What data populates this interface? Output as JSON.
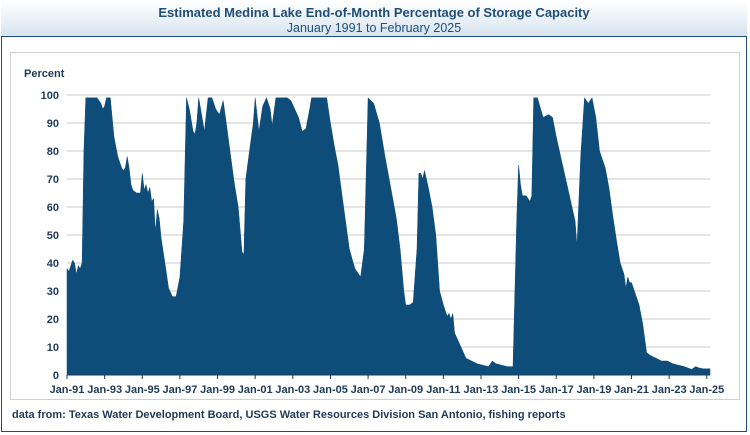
{
  "header": {
    "title": "Estimated Medina Lake End-of-Month Percentage of Storage Capacity",
    "subtitle": "January 1991 to February 2025"
  },
  "footer": {
    "source": "data from:  Texas Water Development Board, USGS Water Resources Division San Antonio, fishing reports"
  },
  "colors": {
    "fill": "#0e4c7a",
    "grid": "#c8c8c8",
    "frame": "#1f4e79",
    "text": "#1f3a57"
  },
  "chart_data": {
    "type": "area",
    "title": "Estimated Medina Lake End-of-Month Percentage of Storage Capacity",
    "subtitle": "January 1991 to February 2025",
    "ylabel": "Percent",
    "xlabel": "",
    "ylim": [
      0,
      100
    ],
    "yticks": [
      0,
      10,
      20,
      30,
      40,
      50,
      60,
      70,
      80,
      90,
      100
    ],
    "xlim": [
      1991.0,
      2025.17
    ],
    "xticks": [
      {
        "label": "Jan-91",
        "x": 1991.0
      },
      {
        "label": "Jan-93",
        "x": 1993.0
      },
      {
        "label": "Jan-95",
        "x": 1995.0
      },
      {
        "label": "Jan-97",
        "x": 1997.0
      },
      {
        "label": "Jan-99",
        "x": 1999.0
      },
      {
        "label": "Jan-01",
        "x": 2001.0
      },
      {
        "label": "Jan-03",
        "x": 2003.0
      },
      {
        "label": "Jan-05",
        "x": 2005.0
      },
      {
        "label": "Jan-07",
        "x": 2007.0
      },
      {
        "label": "Jan-09",
        "x": 2009.0
      },
      {
        "label": "Jan-11",
        "x": 2011.0
      },
      {
        "label": "Jan-13",
        "x": 2013.0
      },
      {
        "label": "Jan-15",
        "x": 2015.0
      },
      {
        "label": "Jan-17",
        "x": 2017.0
      },
      {
        "label": "Jan-19",
        "x": 2019.0
      },
      {
        "label": "Jan-21",
        "x": 2021.0
      },
      {
        "label": "Jan-23",
        "x": 2023.0
      },
      {
        "label": "Jan-25",
        "x": 2025.0
      }
    ],
    "grid": true,
    "series": [
      {
        "points": [
          [
            1991.0,
            38
          ],
          [
            1991.1,
            37
          ],
          [
            1991.2,
            39
          ],
          [
            1991.3,
            41
          ],
          [
            1991.4,
            40
          ],
          [
            1991.5,
            36
          ],
          [
            1991.6,
            39
          ],
          [
            1991.7,
            38
          ],
          [
            1991.8,
            40
          ],
          [
            1991.9,
            80
          ],
          [
            1992.0,
            99
          ],
          [
            1992.3,
            99
          ],
          [
            1992.6,
            99
          ],
          [
            1992.8,
            97
          ],
          [
            1992.9,
            95
          ],
          [
            1993.0,
            96
          ],
          [
            1993.1,
            99
          ],
          [
            1993.3,
            99
          ],
          [
            1993.5,
            85
          ],
          [
            1993.7,
            78
          ],
          [
            1993.9,
            74
          ],
          [
            1994.0,
            73
          ],
          [
            1994.1,
            74
          ],
          [
            1994.2,
            78
          ],
          [
            1994.3,
            74
          ],
          [
            1994.4,
            68
          ],
          [
            1994.5,
            66
          ],
          [
            1994.7,
            65
          ],
          [
            1994.9,
            65
          ],
          [
            1995.0,
            72
          ],
          [
            1995.1,
            66
          ],
          [
            1995.2,
            68
          ],
          [
            1995.3,
            65
          ],
          [
            1995.4,
            67
          ],
          [
            1995.5,
            62
          ],
          [
            1995.6,
            63
          ],
          [
            1995.7,
            51
          ],
          [
            1995.8,
            59
          ],
          [
            1995.9,
            56
          ],
          [
            1996.0,
            49
          ],
          [
            1996.2,
            40
          ],
          [
            1996.4,
            31
          ],
          [
            1996.6,
            28
          ],
          [
            1996.8,
            28
          ],
          [
            1997.0,
            35
          ],
          [
            1997.2,
            55
          ],
          [
            1997.35,
            99
          ],
          [
            1997.5,
            95
          ],
          [
            1997.7,
            87
          ],
          [
            1997.8,
            86
          ],
          [
            1997.9,
            90
          ],
          [
            1998.0,
            99
          ],
          [
            1998.1,
            95
          ],
          [
            1998.3,
            87
          ],
          [
            1998.5,
            99
          ],
          [
            1998.7,
            99
          ],
          [
            1998.9,
            95
          ],
          [
            1999.1,
            93
          ],
          [
            1999.3,
            98
          ],
          [
            1999.5,
            88
          ],
          [
            1999.7,
            78
          ],
          [
            1999.9,
            68
          ],
          [
            2000.1,
            60
          ],
          [
            2000.3,
            44
          ],
          [
            2000.4,
            43
          ],
          [
            2000.5,
            70
          ],
          [
            2000.7,
            80
          ],
          [
            2000.9,
            90
          ],
          [
            2001.0,
            99
          ],
          [
            2001.2,
            87
          ],
          [
            2001.4,
            96
          ],
          [
            2001.6,
            99
          ],
          [
            2001.8,
            95
          ],
          [
            2001.9,
            89
          ],
          [
            2002.1,
            99
          ],
          [
            2002.3,
            99
          ],
          [
            2002.5,
            99
          ],
          [
            2002.7,
            99
          ],
          [
            2002.9,
            98
          ],
          [
            2003.1,
            95
          ],
          [
            2003.3,
            92
          ],
          [
            2003.5,
            87
          ],
          [
            2003.7,
            88
          ],
          [
            2003.9,
            95
          ],
          [
            2004.0,
            99
          ],
          [
            2004.2,
            99
          ],
          [
            2004.4,
            99
          ],
          [
            2004.6,
            99
          ],
          [
            2004.8,
            99
          ],
          [
            2005.0,
            90
          ],
          [
            2005.2,
            82
          ],
          [
            2005.4,
            75
          ],
          [
            2005.6,
            65
          ],
          [
            2005.8,
            55
          ],
          [
            2006.0,
            45
          ],
          [
            2006.3,
            38
          ],
          [
            2006.6,
            35
          ],
          [
            2006.8,
            45
          ],
          [
            2007.0,
            99
          ],
          [
            2007.3,
            97
          ],
          [
            2007.6,
            90
          ],
          [
            2007.9,
            78
          ],
          [
            2008.2,
            67
          ],
          [
            2008.5,
            56
          ],
          [
            2008.7,
            45
          ],
          [
            2008.9,
            30
          ],
          [
            2009.0,
            25
          ],
          [
            2009.2,
            25
          ],
          [
            2009.4,
            26
          ],
          [
            2009.6,
            45
          ],
          [
            2009.7,
            72
          ],
          [
            2009.8,
            72
          ],
          [
            2009.9,
            70
          ],
          [
            2010.0,
            73
          ],
          [
            2010.2,
            67
          ],
          [
            2010.4,
            60
          ],
          [
            2010.6,
            50
          ],
          [
            2010.8,
            30
          ],
          [
            2011.0,
            25
          ],
          [
            2011.2,
            21
          ],
          [
            2011.3,
            22
          ],
          [
            2011.4,
            20
          ],
          [
            2011.5,
            22
          ],
          [
            2011.6,
            15
          ],
          [
            2011.8,
            12
          ],
          [
            2012.0,
            9
          ],
          [
            2012.2,
            6
          ],
          [
            2012.5,
            5
          ],
          [
            2012.8,
            4
          ],
          [
            2013.1,
            3.5
          ],
          [
            2013.4,
            3
          ],
          [
            2013.6,
            5
          ],
          [
            2013.8,
            4
          ],
          [
            2014.1,
            3.5
          ],
          [
            2014.4,
            3
          ],
          [
            2014.7,
            3
          ],
          [
            2014.9,
            55
          ],
          [
            2015.0,
            75
          ],
          [
            2015.1,
            68
          ],
          [
            2015.2,
            64
          ],
          [
            2015.4,
            64
          ],
          [
            2015.6,
            62
          ],
          [
            2015.7,
            64
          ],
          [
            2015.8,
            99
          ],
          [
            2016.0,
            99
          ],
          [
            2016.3,
            92
          ],
          [
            2016.6,
            93
          ],
          [
            2016.8,
            92
          ],
          [
            2017.0,
            85
          ],
          [
            2017.3,
            76
          ],
          [
            2017.6,
            67
          ],
          [
            2017.9,
            58
          ],
          [
            2018.0,
            55
          ],
          [
            2018.1,
            46
          ],
          [
            2018.3,
            78
          ],
          [
            2018.5,
            99
          ],
          [
            2018.7,
            97
          ],
          [
            2018.9,
            99
          ],
          [
            2019.1,
            92
          ],
          [
            2019.3,
            80
          ],
          [
            2019.6,
            74
          ],
          [
            2019.8,
            67
          ],
          [
            2020.0,
            57
          ],
          [
            2020.2,
            48
          ],
          [
            2020.4,
            40
          ],
          [
            2020.6,
            36
          ],
          [
            2020.7,
            31
          ],
          [
            2020.8,
            35
          ],
          [
            2020.9,
            33
          ],
          [
            2021.0,
            33
          ],
          [
            2021.2,
            29
          ],
          [
            2021.4,
            25
          ],
          [
            2021.6,
            18
          ],
          [
            2021.8,
            8
          ],
          [
            2022.0,
            7
          ],
          [
            2022.3,
            6
          ],
          [
            2022.6,
            5
          ],
          [
            2022.9,
            5
          ],
          [
            2023.2,
            4
          ],
          [
            2023.5,
            3.5
          ],
          [
            2023.8,
            3
          ],
          [
            2024.0,
            2.5
          ],
          [
            2024.2,
            2
          ],
          [
            2024.4,
            3
          ],
          [
            2024.6,
            2.5
          ],
          [
            2024.8,
            2.2
          ],
          [
            2025.0,
            2.2
          ],
          [
            2025.17,
            2.2
          ]
        ]
      }
    ]
  }
}
